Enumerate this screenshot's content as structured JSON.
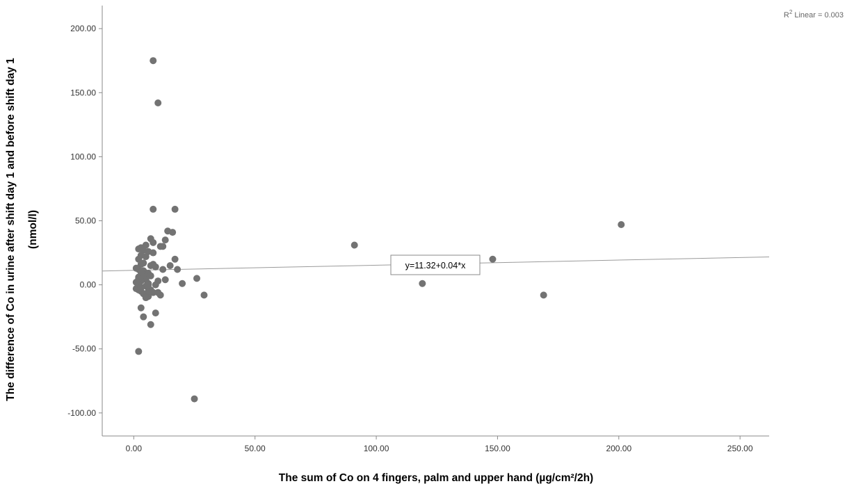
{
  "chart_data": {
    "type": "scatter",
    "xlabel": "The sum of Co on 4 fingers, palm and upper hand (µg/cm²/2h)",
    "ylabel_line1": "The difference of Co in urine after shift day 1 and before  shift day 1",
    "ylabel_line2": "(nmol/l)",
    "xlim": [
      -13,
      262
    ],
    "ylim": [
      -118,
      218
    ],
    "xticks": [
      0,
      50,
      100,
      150,
      200,
      250
    ],
    "xtick_labels": [
      "0.00",
      "50.00",
      "100.00",
      "150.00",
      "200.00",
      "250.00"
    ],
    "yticks": [
      -100,
      -50,
      0,
      50,
      100,
      150,
      200
    ],
    "ytick_labels": [
      "-100.00",
      "-50.00",
      "0.00",
      "50.00",
      "100.00",
      "150.00",
      "200.00"
    ],
    "grid": false,
    "fit_line": {
      "intercept": 11.32,
      "slope": 0.04,
      "label": "y=11.32+0.04*x",
      "r2_label_prefix": "R",
      "r2_label_sup": "2",
      "r2_label_suffix": " Linear = 0.003"
    },
    "point_color": "#737373",
    "series": [
      {
        "x": [
          8,
          10,
          8,
          17,
          91,
          201,
          14,
          16,
          13,
          12,
          7,
          8,
          11,
          5,
          3,
          2,
          4,
          6,
          8,
          17,
          3,
          5,
          2,
          18,
          15,
          4,
          3,
          12,
          7,
          8,
          9,
          2,
          1,
          3,
          4,
          5,
          6,
          7,
          26,
          20,
          13,
          10,
          2,
          4,
          5,
          3,
          1,
          6,
          9,
          5,
          3,
          2,
          7,
          11,
          8,
          2,
          1,
          3,
          4,
          6,
          5,
          2,
          3,
          4,
          29,
          10,
          6,
          9,
          3,
          4,
          2,
          3,
          7,
          5,
          3,
          6,
          148,
          119,
          169,
          2,
          25
        ],
        "y": [
          175,
          142,
          59,
          59,
          31,
          47,
          42,
          41,
          35,
          30,
          36,
          33,
          30,
          31,
          29,
          28,
          27,
          26,
          25,
          20,
          23,
          22,
          20,
          12,
          15,
          17,
          16,
          12,
          15,
          16,
          14,
          12,
          13,
          10,
          11,
          8,
          9,
          7,
          5,
          1,
          4,
          3,
          6,
          5,
          4,
          3,
          2,
          1,
          0,
          -1,
          -2,
          -3,
          -4,
          -8,
          -6,
          0,
          -3,
          -5,
          -7,
          -9,
          -10,
          5,
          7,
          8,
          -8,
          -6,
          -5,
          -22,
          -18,
          -25,
          -4,
          -2,
          -31,
          -10,
          10,
          0,
          20,
          1,
          -8,
          -52,
          -89
        ]
      }
    ]
  }
}
